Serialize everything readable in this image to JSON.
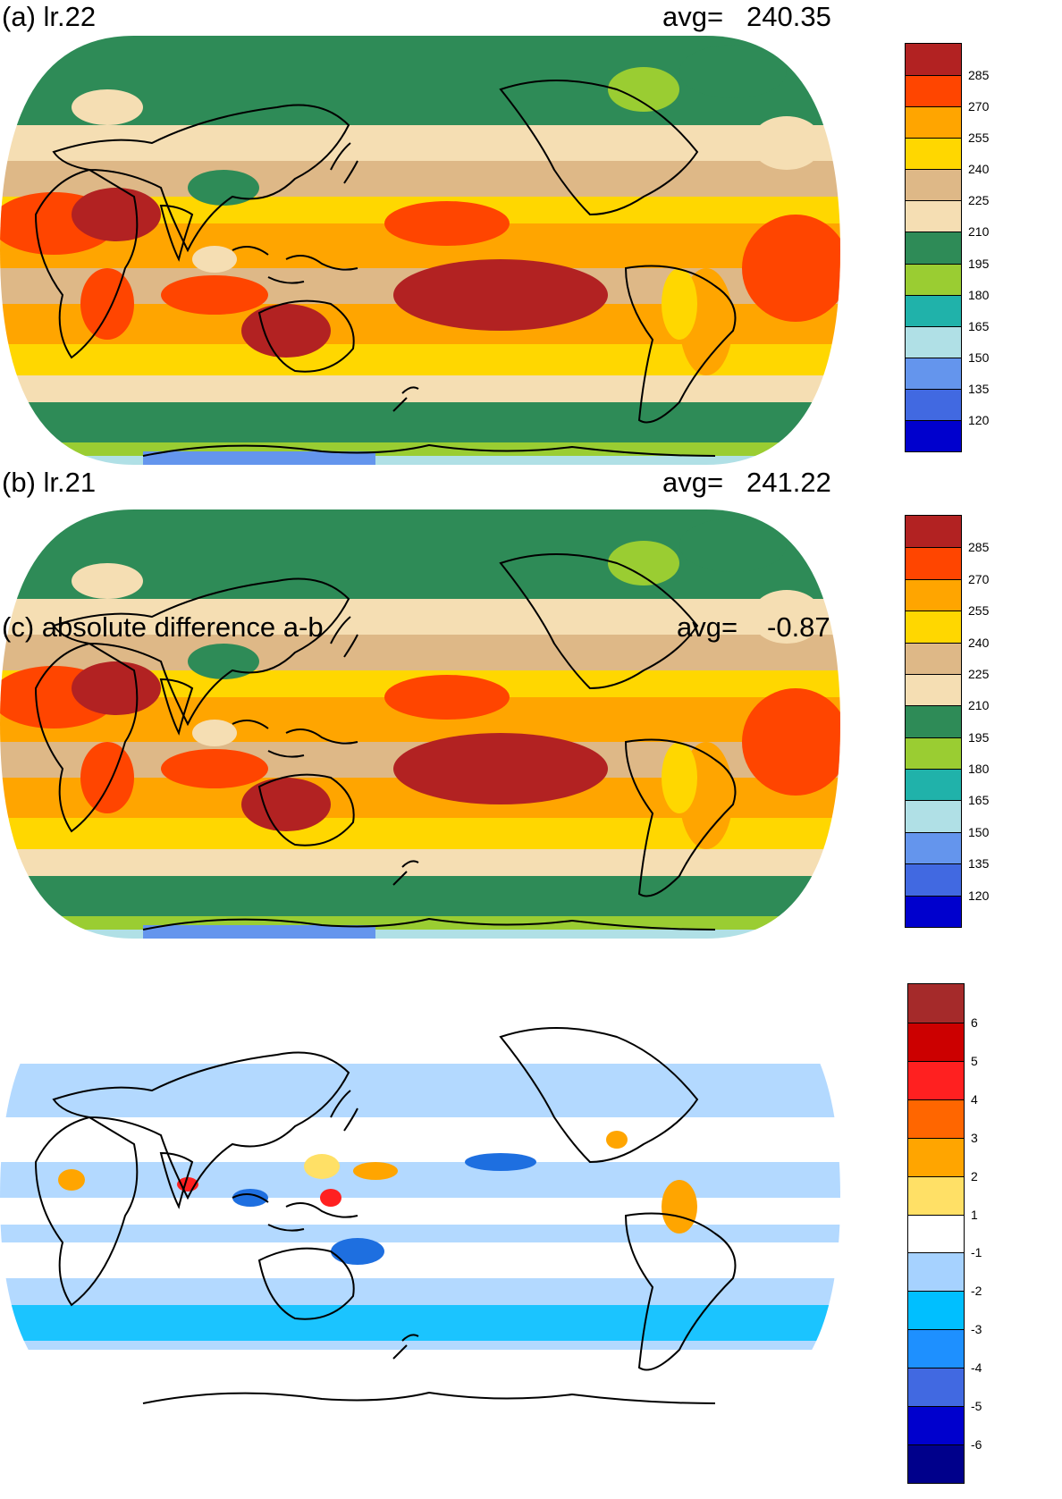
{
  "panels": [
    {
      "title": "(a) lr.22",
      "avg_label": "avg=",
      "avg_value": "240.35",
      "colorbar": {
        "colors": [
          "#b22222",
          "#ff4500",
          "#ffa500",
          "#ffd700",
          "#deb887",
          "#f5deb3",
          "#2e8b57",
          "#9acd32",
          "#20b2aa",
          "#b0e0e6",
          "#6495ed",
          "#4169e1",
          "#0000cd"
        ],
        "labels": [
          "285",
          "270",
          "255",
          "240",
          "225",
          "210",
          "195",
          "180",
          "165",
          "150",
          "135",
          "120"
        ]
      }
    },
    {
      "title": "(b) lr.21",
      "avg_label": "avg=",
      "avg_value": "241.22",
      "colorbar": {
        "colors": [
          "#b22222",
          "#ff4500",
          "#ffa500",
          "#ffd700",
          "#deb887",
          "#f5deb3",
          "#2e8b57",
          "#9acd32",
          "#20b2aa",
          "#b0e0e6",
          "#6495ed",
          "#4169e1",
          "#0000cd"
        ],
        "labels": [
          "285",
          "270",
          "255",
          "240",
          "225",
          "210",
          "195",
          "180",
          "165",
          "150",
          "135",
          "120"
        ]
      }
    },
    {
      "title": "(c) absolute difference a-b",
      "avg_label": "avg=",
      "avg_value": "-0.87",
      "colorbar": {
        "colors": [
          "#a52a2a",
          "#cc0000",
          "#ff2020",
          "#ff6600",
          "#ffa500",
          "#ffe066",
          "#ffffff",
          "#a6d2ff",
          "#00bfff",
          "#1e90ff",
          "#4169e1",
          "#0000cd",
          "#00008b"
        ],
        "labels": [
          "6",
          "5",
          "4",
          "3",
          "2",
          "1",
          "-1",
          "-2",
          "-3",
          "-4",
          "-5",
          "-6"
        ]
      }
    }
  ]
}
